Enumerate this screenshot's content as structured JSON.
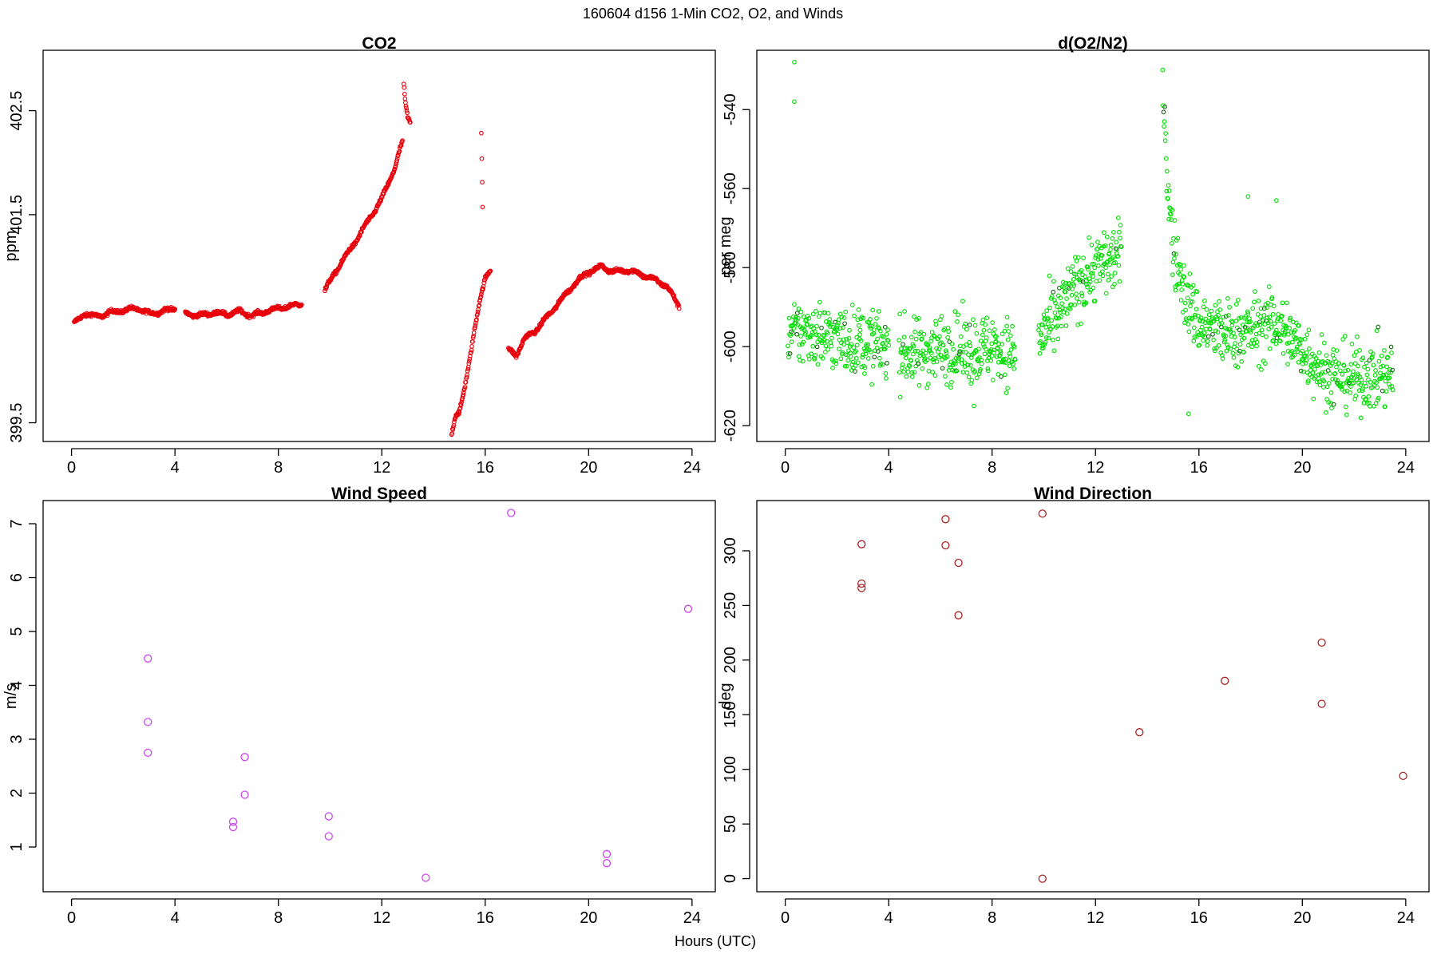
{
  "figure": {
    "title": "160604   d156   1-Min CO2, O2, and Winds",
    "xlabel": "Hours (UTC)"
  },
  "chart_data": [
    {
      "id": "co2",
      "type": "scatter",
      "title": "CO2",
      "xlabel": "",
      "ylabel": "ppm",
      "xlim": [
        -1.1,
        24.9
      ],
      "ylim": [
        399.32,
        403.08
      ],
      "xticks": [
        0,
        4,
        8,
        12,
        16,
        20,
        24
      ],
      "yticks": [
        399.5,
        401.5,
        402.5
      ],
      "ytick_labels": [
        "399.5",
        "401.5",
        "402.5"
      ],
      "color": "#e8000b",
      "segments": [
        {
          "x": [
            0.1,
            0.5,
            1.0,
            1.5,
            2.0,
            2.5,
            3.0,
            3.5,
            4.0
          ],
          "y": [
            400.45,
            400.55,
            400.52,
            400.56,
            400.58,
            400.6,
            400.55,
            400.57,
            400.6
          ]
        },
        {
          "x": [
            4.4,
            5.0,
            5.5,
            6.0,
            6.5,
            7.0,
            7.5,
            8.0,
            8.5,
            8.9
          ],
          "y": [
            400.55,
            400.53,
            400.56,
            400.54,
            400.57,
            400.53,
            400.57,
            400.6,
            400.62,
            400.65
          ]
        },
        {
          "x": [
            9.8,
            10.2,
            10.6,
            11.0,
            11.5,
            12.0,
            12.5,
            12.8
          ],
          "y": [
            400.77,
            400.95,
            401.1,
            401.25,
            401.45,
            401.65,
            401.95,
            402.2
          ]
        },
        {
          "x": [
            12.85,
            12.9,
            13.0,
            13.1
          ],
          "y": [
            402.75,
            402.6,
            402.45,
            402.4
          ]
        },
        {
          "x": [
            14.7,
            14.85,
            15.0,
            15.2,
            15.4,
            15.6,
            15.8,
            16.0,
            16.2
          ],
          "y": [
            399.38,
            399.55,
            399.6,
            399.85,
            400.1,
            400.4,
            400.7,
            400.9,
            400.95
          ]
        },
        {
          "x": [
            15.85,
            15.9
          ],
          "y": [
            402.3,
            401.6
          ]
        },
        {
          "x": [
            16.9,
            17.2,
            17.5,
            18.0,
            18.5,
            19.0,
            19.5,
            20.0,
            20.5,
            21.0,
            21.5,
            22.0,
            22.5,
            23.0,
            23.5
          ],
          "y": [
            400.2,
            400.15,
            400.3,
            400.4,
            400.55,
            400.7,
            400.85,
            400.95,
            401.0,
            400.95,
            400.97,
            400.93,
            400.88,
            400.82,
            400.62
          ]
        }
      ]
    },
    {
      "id": "o2",
      "type": "scatter",
      "title": "d(O2/N2)",
      "xlabel": "",
      "ylabel": "per meg",
      "xlim": [
        -1.1,
        24.9
      ],
      "ylim": [
        -624,
        -525
      ],
      "xticks": [
        0,
        4,
        8,
        12,
        16,
        20,
        24
      ],
      "yticks": [
        -620,
        -600,
        -580,
        -560,
        -540
      ],
      "color": "#00dd00",
      "segments": [
        {
          "x": [
            0.1,
            1.0,
            2.0,
            3.0,
            4.0
          ],
          "y": [
            -597,
            -596,
            -598,
            -599,
            -600
          ]
        },
        {
          "x": [
            4.4,
            5.0,
            6.0,
            7.0,
            8.0,
            8.9
          ],
          "y": [
            -601,
            -602,
            -600,
            -601,
            -600,
            -602
          ]
        },
        {
          "x": [
            9.8,
            10.5,
            11.0,
            11.5,
            12.0,
            12.5,
            13.0
          ],
          "y": [
            -598,
            -593,
            -587,
            -583,
            -580,
            -578,
            -577
          ]
        },
        {
          "x": [
            14.6,
            14.8,
            15.0,
            15.5,
            16.0,
            17.0,
            18.0,
            19.0,
            20.0,
            21.0,
            22.0,
            23.0,
            23.5
          ],
          "y": [
            -532,
            -560,
            -575,
            -588,
            -594,
            -597,
            -596,
            -594,
            -601,
            -607,
            -608,
            -607,
            -608
          ]
        }
      ],
      "outliers": {
        "x": [
          0.35,
          0.35,
          17.9,
          19.0,
          15.6,
          7.3
        ],
        "y": [
          -528,
          -538,
          -562,
          -563,
          -617,
          -615
        ]
      },
      "noise": 6
    },
    {
      "id": "wind-speed",
      "type": "scatter",
      "title": "Wind Speed",
      "xlabel": "",
      "ylabel": "m/s",
      "xlim": [
        -1.1,
        24.9
      ],
      "ylim": [
        0.17,
        7.43
      ],
      "xticks": [
        0,
        4,
        8,
        12,
        16,
        20,
        24
      ],
      "yticks": [
        1,
        2,
        3,
        4,
        5,
        6,
        7
      ],
      "color": "#cc44ee",
      "x": [
        2.95,
        2.95,
        2.95,
        6.25,
        6.25,
        6.7,
        6.7,
        9.95,
        9.95,
        13.7,
        17.0,
        20.7,
        20.7,
        23.85
      ],
      "y": [
        4.5,
        3.32,
        2.75,
        1.47,
        1.37,
        2.67,
        1.97,
        1.57,
        1.2,
        0.43,
        7.2,
        0.87,
        0.7,
        5.42
      ]
    },
    {
      "id": "wind-direction",
      "type": "scatter",
      "title": "Wind Direction",
      "xlabel": "",
      "ylabel": "deg",
      "xlim": [
        -1.1,
        24.9
      ],
      "ylim": [
        -12,
        346
      ],
      "xticks": [
        0,
        4,
        8,
        12,
        16,
        20,
        24
      ],
      "yticks": [
        0,
        50,
        100,
        150,
        200,
        250,
        300
      ],
      "color": "#aa2222",
      "x": [
        2.95,
        2.95,
        2.95,
        6.2,
        6.2,
        6.7,
        6.7,
        9.95,
        9.95,
        13.7,
        17.0,
        20.75,
        20.75,
        23.9
      ],
      "y": [
        306,
        270,
        266,
        329,
        305,
        289,
        241,
        334,
        0,
        134,
        181,
        216,
        160,
        94
      ]
    }
  ]
}
